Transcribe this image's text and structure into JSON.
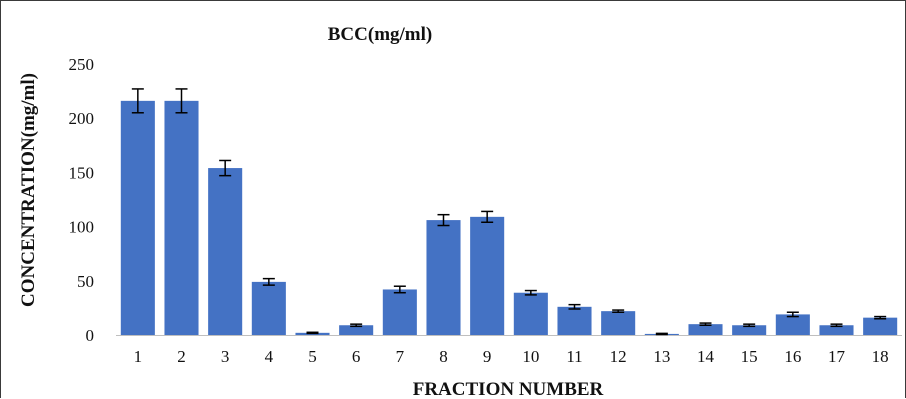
{
  "chart_data": {
    "type": "bar",
    "title": "BCC(mg/ml)",
    "xlabel": "FRACTION NUMBER",
    "ylabel": "CONCENTRATION(mg/ml)",
    "ylim": [
      0,
      250
    ],
    "yticks": [
      "0",
      "50",
      "100",
      "150",
      "200",
      "250"
    ],
    "ytick_values": [
      0,
      50,
      100,
      150,
      200,
      250
    ],
    "categories": [
      "1",
      "2",
      "3",
      "4",
      "5",
      "6",
      "7",
      "8",
      "9",
      "10",
      "11",
      "12",
      "13",
      "14",
      "15",
      "16",
      "17",
      "18"
    ],
    "values": [
      216,
      216,
      154,
      49,
      2,
      9,
      42,
      106,
      109,
      39,
      26,
      22,
      1,
      10,
      9,
      19,
      9,
      16
    ],
    "errors": [
      11,
      11,
      7,
      3,
      0.5,
      1,
      3,
      5,
      5,
      2,
      2,
      1,
      0.5,
      1,
      1,
      2,
      1,
      1
    ],
    "bar_color": "#4472c4",
    "grid": false,
    "legend": "none"
  }
}
